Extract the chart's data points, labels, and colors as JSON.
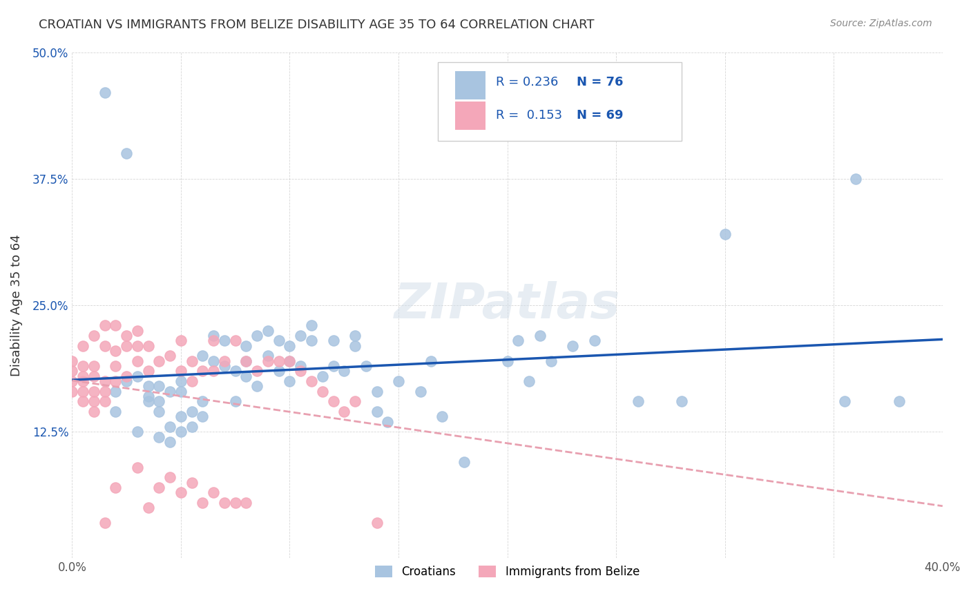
{
  "title": "CROATIAN VS IMMIGRANTS FROM BELIZE DISABILITY AGE 35 TO 64 CORRELATION CHART",
  "source": "Source: ZipAtlas.com",
  "xlabel": "",
  "ylabel": "Disability Age 35 to 64",
  "xlim": [
    0.0,
    0.4
  ],
  "ylim": [
    0.0,
    0.5
  ],
  "xticks": [
    0.0,
    0.05,
    0.1,
    0.15,
    0.2,
    0.25,
    0.3,
    0.35,
    0.4
  ],
  "xticklabels": [
    "0.0%",
    "",
    "",
    "",
    "",
    "",
    "",
    "",
    "40.0%"
  ],
  "yticks": [
    0.0,
    0.125,
    0.25,
    0.375,
    0.5
  ],
  "yticklabels": [
    "",
    "12.5%",
    "25.0%",
    "37.5%",
    "50.0%"
  ],
  "croatian_color": "#a8c4e0",
  "belize_color": "#f4a7b9",
  "croatian_line_color": "#1a56b0",
  "belize_line_color": "#e8a0b0",
  "watermark": "ZIPatlas",
  "legend_R1": "0.236",
  "legend_N1": "76",
  "legend_R2": "0.153",
  "legend_N2": "69",
  "croatian_scatter_x": [
    0.02,
    0.02,
    0.025,
    0.03,
    0.03,
    0.035,
    0.035,
    0.035,
    0.04,
    0.04,
    0.04,
    0.04,
    0.045,
    0.045,
    0.045,
    0.05,
    0.05,
    0.05,
    0.05,
    0.055,
    0.055,
    0.06,
    0.06,
    0.06,
    0.065,
    0.065,
    0.07,
    0.07,
    0.075,
    0.075,
    0.08,
    0.08,
    0.08,
    0.085,
    0.085,
    0.09,
    0.09,
    0.095,
    0.095,
    0.1,
    0.1,
    0.1,
    0.105,
    0.105,
    0.11,
    0.11,
    0.115,
    0.12,
    0.12,
    0.125,
    0.13,
    0.13,
    0.135,
    0.14,
    0.14,
    0.145,
    0.15,
    0.16,
    0.165,
    0.17,
    0.18,
    0.2,
    0.205,
    0.21,
    0.215,
    0.22,
    0.23,
    0.24,
    0.26,
    0.28,
    0.3,
    0.355,
    0.36,
    0.38,
    0.015,
    0.025
  ],
  "croatian_scatter_y": [
    0.165,
    0.145,
    0.175,
    0.18,
    0.125,
    0.16,
    0.155,
    0.17,
    0.12,
    0.145,
    0.155,
    0.17,
    0.115,
    0.13,
    0.165,
    0.125,
    0.14,
    0.165,
    0.175,
    0.13,
    0.145,
    0.14,
    0.155,
    0.2,
    0.195,
    0.22,
    0.19,
    0.215,
    0.155,
    0.185,
    0.18,
    0.195,
    0.21,
    0.17,
    0.22,
    0.2,
    0.225,
    0.185,
    0.215,
    0.175,
    0.195,
    0.21,
    0.19,
    0.22,
    0.215,
    0.23,
    0.18,
    0.19,
    0.215,
    0.185,
    0.21,
    0.22,
    0.19,
    0.145,
    0.165,
    0.135,
    0.175,
    0.165,
    0.195,
    0.14,
    0.095,
    0.195,
    0.215,
    0.175,
    0.22,
    0.195,
    0.21,
    0.215,
    0.155,
    0.155,
    0.32,
    0.155,
    0.375,
    0.155,
    0.46,
    0.4
  ],
  "belize_scatter_x": [
    0.0,
    0.0,
    0.0,
    0.0,
    0.005,
    0.005,
    0.005,
    0.005,
    0.005,
    0.005,
    0.01,
    0.01,
    0.01,
    0.01,
    0.01,
    0.01,
    0.015,
    0.015,
    0.015,
    0.015,
    0.015,
    0.02,
    0.02,
    0.02,
    0.02,
    0.025,
    0.025,
    0.025,
    0.03,
    0.03,
    0.03,
    0.035,
    0.035,
    0.04,
    0.045,
    0.05,
    0.05,
    0.055,
    0.055,
    0.06,
    0.065,
    0.065,
    0.07,
    0.075,
    0.08,
    0.085,
    0.09,
    0.095,
    0.1,
    0.105,
    0.11,
    0.115,
    0.12,
    0.125,
    0.13,
    0.14,
    0.015,
    0.02,
    0.03,
    0.035,
    0.04,
    0.045,
    0.05,
    0.055,
    0.06,
    0.065,
    0.07,
    0.075,
    0.08
  ],
  "belize_scatter_y": [
    0.165,
    0.175,
    0.185,
    0.195,
    0.155,
    0.165,
    0.175,
    0.18,
    0.19,
    0.21,
    0.145,
    0.155,
    0.165,
    0.18,
    0.19,
    0.22,
    0.155,
    0.165,
    0.175,
    0.21,
    0.23,
    0.175,
    0.19,
    0.205,
    0.23,
    0.18,
    0.21,
    0.22,
    0.195,
    0.21,
    0.225,
    0.185,
    0.21,
    0.195,
    0.2,
    0.185,
    0.215,
    0.175,
    0.195,
    0.185,
    0.185,
    0.215,
    0.195,
    0.215,
    0.195,
    0.185,
    0.195,
    0.195,
    0.195,
    0.185,
    0.175,
    0.165,
    0.155,
    0.145,
    0.155,
    0.035,
    0.035,
    0.07,
    0.09,
    0.05,
    0.07,
    0.08,
    0.065,
    0.075,
    0.055,
    0.065,
    0.055,
    0.055,
    0.055
  ]
}
